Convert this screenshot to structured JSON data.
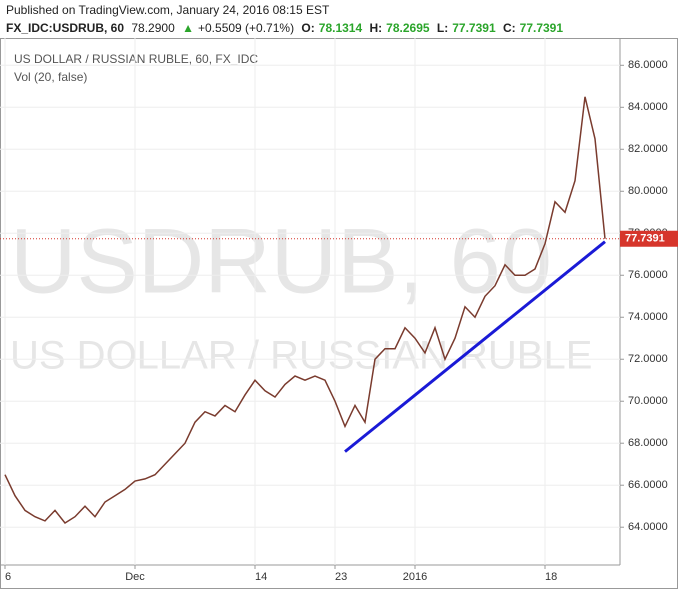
{
  "header": {
    "published": "Published on TradingView.com, January 24, 2016 08:15 EST",
    "symbol": "FX_IDC:USDRUB, 60",
    "last": "78.2900",
    "arrow": "▲",
    "change": "+0.5509 (+0.71%)",
    "o_label": "O:",
    "o": "78.1314",
    "h_label": "H:",
    "h": "78.2695",
    "l_label": "L:",
    "l": "77.7391",
    "c_label": "C:",
    "c": "77.7391"
  },
  "chart_data": {
    "type": "line",
    "title": "US DOLLAR / RUSSIAN RUBLE, 60, FX_IDC",
    "subtitle": "Vol (20, false)",
    "watermark": "USDRUB, 60",
    "watermark_name": "US DOLLAR / RUSSIAN RUBLE",
    "categories": [
      "6",
      null,
      null,
      null,
      null,
      null,
      null,
      null,
      null,
      null,
      null,
      null,
      null,
      "Dec",
      null,
      null,
      null,
      null,
      null,
      null,
      null,
      null,
      null,
      null,
      null,
      "14",
      null,
      null,
      null,
      null,
      null,
      null,
      null,
      "23",
      null,
      null,
      null,
      null,
      null,
      null,
      null,
      "2016",
      null,
      null,
      null,
      null,
      null,
      null,
      null,
      null,
      null,
      null,
      null,
      null,
      "18",
      null,
      null,
      null,
      null,
      null,
      null
    ],
    "series": [
      {
        "name": "USDRUB",
        "color": "#7a3b2e",
        "values": [
          66.5,
          65.5,
          64.8,
          64.5,
          64.3,
          64.8,
          64.2,
          64.5,
          65.0,
          64.5,
          65.2,
          65.5,
          65.8,
          66.2,
          66.3,
          66.5,
          67.0,
          67.5,
          68.0,
          69.0,
          69.5,
          69.3,
          69.8,
          69.5,
          70.3,
          71.0,
          70.5,
          70.2,
          70.8,
          71.2,
          71.0,
          71.2,
          71.0,
          70.0,
          68.8,
          69.8,
          69.0,
          72.0,
          72.5,
          72.5,
          73.5,
          73.0,
          72.3,
          73.5,
          72.0,
          73.0,
          74.5,
          74.0,
          75.0,
          75.5,
          76.5,
          76.0,
          76.0,
          76.3,
          77.5,
          79.5,
          79.0,
          80.5,
          84.5,
          82.5,
          77.7391
        ]
      }
    ],
    "trendline": {
      "color": "#1a1ad6",
      "values": [
        null,
        null,
        null,
        null,
        null,
        null,
        null,
        null,
        null,
        null,
        null,
        null,
        null,
        null,
        null,
        null,
        null,
        null,
        null,
        null,
        null,
        null,
        null,
        null,
        null,
        null,
        null,
        null,
        null,
        null,
        null,
        null,
        null,
        null,
        67.6,
        null,
        null,
        null,
        null,
        null,
        null,
        null,
        null,
        null,
        null,
        null,
        null,
        null,
        null,
        null,
        null,
        null,
        null,
        null,
        null,
        null,
        null,
        null,
        null,
        null,
        77.6
      ]
    },
    "last_price": 77.7391,
    "last_price_color": "#d6352b",
    "ylim": [
      62.2,
      87.3
    ],
    "yticks": [
      {
        "value": 64,
        "label": "64.0000"
      },
      {
        "value": 66,
        "label": "66.0000"
      },
      {
        "value": 68,
        "label": "68.0000"
      },
      {
        "value": 70,
        "label": "70.0000"
      },
      {
        "value": 72,
        "label": "72.0000"
      },
      {
        "value": 74,
        "label": "74.0000"
      },
      {
        "value": 76,
        "label": "76.0000"
      },
      {
        "value": 78,
        "label": "78.0000"
      },
      {
        "value": 80,
        "label": "80.0000"
      },
      {
        "value": 82,
        "label": "82.0000"
      },
      {
        "value": 84,
        "label": "84.0000"
      },
      {
        "value": 86,
        "label": "86.0000"
      }
    ],
    "grid": true
  }
}
